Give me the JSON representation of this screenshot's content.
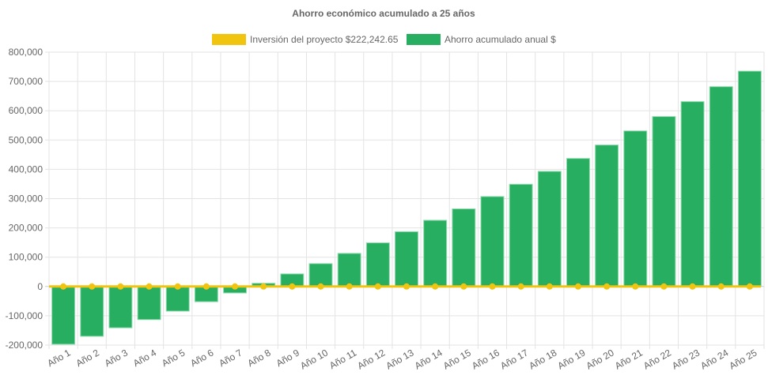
{
  "chart_data": {
    "type": "bar",
    "title": "Ahorro económico acumulado a 25 años",
    "categories": [
      "Año 1",
      "Año 2",
      "Año 3",
      "Año 4",
      "Año 5",
      "Año 6",
      "Año 7",
      "Año 8",
      "Año 9",
      "Año 10",
      "Año 11",
      "Año 12",
      "Año 13",
      "Año 14",
      "Año 15",
      "Año 16",
      "Año 17",
      "Año 18",
      "Año 19",
      "Año 20",
      "Año 21",
      "Año 22",
      "Año 23",
      "Año 24",
      "Año 25"
    ],
    "series": [
      {
        "name": "Inversión del proyecto $222,242.65",
        "type": "line",
        "color": "#f1c40f",
        "values": [
          0,
          0,
          0,
          0,
          0,
          0,
          0,
          0,
          0,
          0,
          0,
          0,
          0,
          0,
          0,
          0,
          0,
          0,
          0,
          0,
          0,
          0,
          0,
          0,
          0
        ]
      },
      {
        "name": "Ahorro acumulado anual $",
        "type": "bar",
        "color": "#27ae60",
        "values": [
          -197000,
          -170000,
          -141000,
          -113000,
          -84000,
          -52000,
          -22000,
          11000,
          43000,
          78000,
          113000,
          149000,
          187000,
          226000,
          265000,
          307000,
          349000,
          393000,
          437000,
          483000,
          531000,
          580000,
          631000,
          682000,
          735000
        ]
      }
    ],
    "xlabel": "",
    "ylabel": "",
    "ylim": [
      -200000,
      800000
    ],
    "yticks": [
      "-200,000",
      "-100,000",
      "0",
      "100,000",
      "200,000",
      "300,000",
      "400,000",
      "500,000",
      "600,000",
      "700,000",
      "800,000"
    ],
    "grid": true,
    "legend_position": "top"
  }
}
